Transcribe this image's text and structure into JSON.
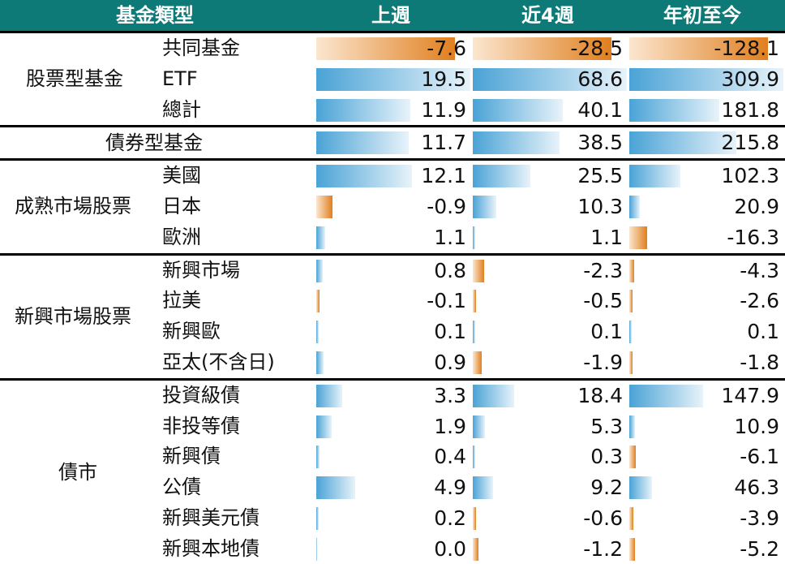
{
  "headers": {
    "type": "基金類型",
    "week": "上週",
    "four_weeks": "近4週",
    "ytd": "年初至今"
  },
  "max": {
    "week": 19.5,
    "four_weeks": 68.6,
    "ytd": 309.9
  },
  "groups": [
    {
      "name": "股票型基金",
      "rows": [
        {
          "label": "共同基金",
          "week": -7.6,
          "four_weeks": -28.5,
          "ytd": -128.1
        },
        {
          "label": "ETF",
          "week": 19.5,
          "four_weeks": 68.6,
          "ytd": 309.9
        },
        {
          "label": "總計",
          "week": 11.9,
          "four_weeks": 40.1,
          "ytd": 181.8
        }
      ]
    },
    {
      "name": "債券型基金",
      "rows": [
        {
          "label": "",
          "week": 11.7,
          "four_weeks": 38.5,
          "ytd": 215.8
        }
      ]
    },
    {
      "name": "成熟市場股票",
      "rows": [
        {
          "label": "美國",
          "week": 12.1,
          "four_weeks": 25.5,
          "ytd": 102.3
        },
        {
          "label": "日本",
          "week": -0.9,
          "four_weeks": 10.3,
          "ytd": 20.9
        },
        {
          "label": "歐洲",
          "week": 1.1,
          "four_weeks": 1.1,
          "ytd": -16.3
        }
      ]
    },
    {
      "name": "新興市場股票",
      "rows": [
        {
          "label": "新興市場",
          "week": 0.8,
          "four_weeks": -2.3,
          "ytd": -4.3
        },
        {
          "label": "拉美",
          "week": -0.1,
          "four_weeks": -0.5,
          "ytd": -2.6
        },
        {
          "label": "新興歐",
          "week": 0.1,
          "four_weeks": 0.1,
          "ytd": 0.1
        },
        {
          "label": "亞太(不含日)",
          "week": 0.9,
          "four_weeks": -1.9,
          "ytd": -1.8
        }
      ]
    },
    {
      "name": "債市",
      "rows": [
        {
          "label": "投資級債",
          "week": 3.3,
          "four_weeks": 18.4,
          "ytd": 147.9
        },
        {
          "label": "非投等債",
          "week": 1.9,
          "four_weeks": 5.3,
          "ytd": 10.9
        },
        {
          "label": "新興債",
          "week": 0.4,
          "four_weeks": 0.3,
          "ytd": -6.1
        },
        {
          "label": "公債",
          "week": 4.9,
          "four_weeks": 9.2,
          "ytd": 46.3
        },
        {
          "label": "新興美元債",
          "week": 0.2,
          "four_weeks": -0.6,
          "ytd": -3.9
        },
        {
          "label": "新興本地債",
          "week": 0.0,
          "four_weeks": -1.2,
          "ytd": -5.2
        }
      ]
    }
  ]
}
